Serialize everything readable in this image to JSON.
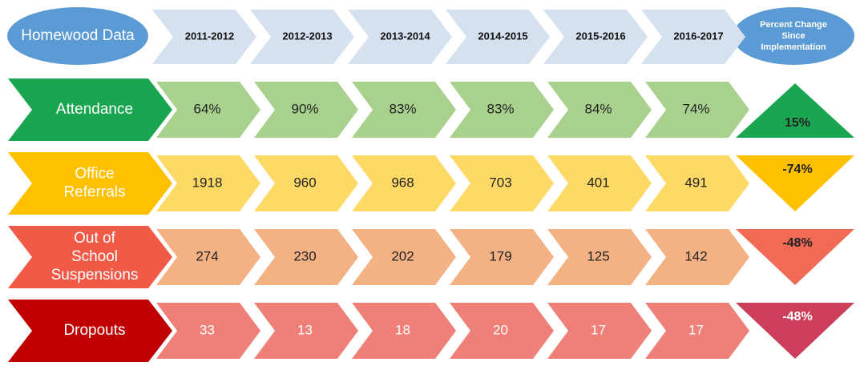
{
  "header": {
    "title": "Homewood Data",
    "years": [
      "2011-2012",
      "2012-2013",
      "2013-2014",
      "2014-2015",
      "2015-2016",
      "2016-2017"
    ],
    "change_label": "Percent Change Since Implementation"
  },
  "rows": [
    {
      "label": "Attendance",
      "values": [
        "64%",
        "90%",
        "83%",
        "83%",
        "84%",
        "74%"
      ],
      "change": "15%"
    },
    {
      "label": "Office Referrals",
      "values": [
        "1918",
        "960",
        "968",
        "703",
        "401",
        "491"
      ],
      "change": "-74%"
    },
    {
      "label": "Out of School Suspensions",
      "values": [
        "274",
        "230",
        "202",
        "179",
        "125",
        "142"
      ],
      "change": "-48%"
    },
    {
      "label": "Dropouts",
      "values": [
        "33",
        "13",
        "18",
        "20",
        "17",
        "17"
      ],
      "change": "-48%"
    }
  ]
}
